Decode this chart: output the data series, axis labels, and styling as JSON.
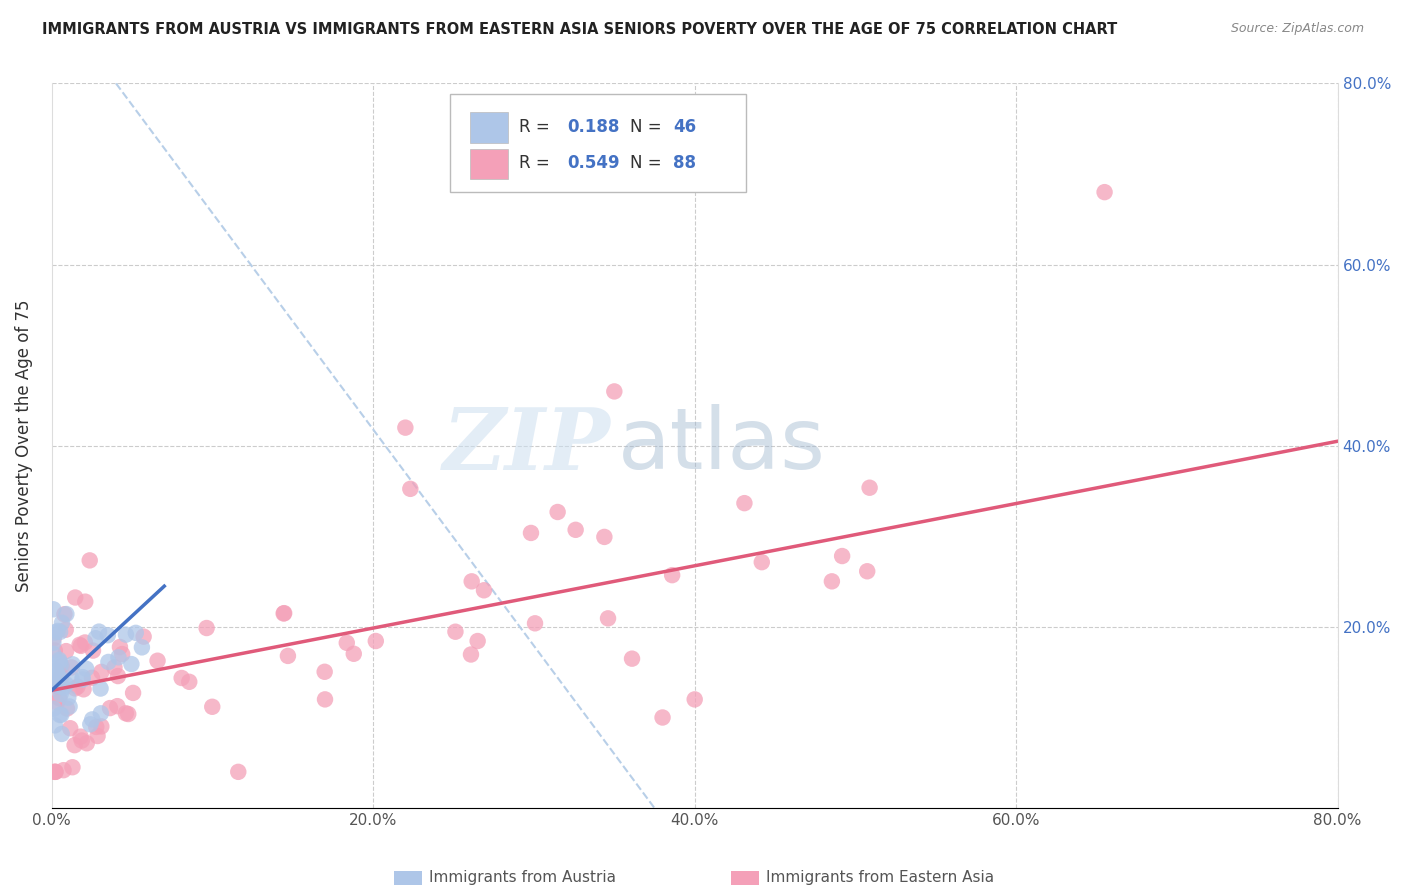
{
  "title": "IMMIGRANTS FROM AUSTRIA VS IMMIGRANTS FROM EASTERN ASIA SENIORS POVERTY OVER THE AGE OF 75 CORRELATION CHART",
  "source": "Source: ZipAtlas.com",
  "ylabel": "Seniors Poverty Over the Age of 75",
  "xlim": [
    0.0,
    0.8
  ],
  "ylim": [
    0.0,
    0.8
  ],
  "xticks": [
    0.0,
    0.2,
    0.4,
    0.6,
    0.8
  ],
  "xticklabels": [
    "0.0%",
    "20.0%",
    "40.0%",
    "60.0%",
    "80.0%"
  ],
  "yticks_right": [
    0.2,
    0.4,
    0.6,
    0.8
  ],
  "yticklabels_right": [
    "20.0%",
    "40.0%",
    "60.0%",
    "80.0%"
  ],
  "R_austria": 0.188,
  "N_austria": 46,
  "R_eastern_asia": 0.549,
  "N_eastern_asia": 88,
  "austria_color": "#aec6e8",
  "eastern_asia_color": "#f4a0b8",
  "austria_line_color": "#4472c4",
  "eastern_asia_line_color": "#e05a7a",
  "watermark_zip": "ZIP",
  "watermark_atlas": "atlas",
  "grid_color": "#cccccc",
  "background_color": "#ffffff",
  "diag_line_color": "#b8cfe8",
  "diag_line_x": [
    0.04,
    0.375
  ],
  "diag_line_y": [
    0.8,
    0.0
  ],
  "ea_trend_x": [
    0.0,
    0.8
  ],
  "ea_trend_y": [
    0.13,
    0.405
  ],
  "austria_trend_x": [
    0.0,
    0.07
  ],
  "austria_trend_y": [
    0.13,
    0.245
  ]
}
